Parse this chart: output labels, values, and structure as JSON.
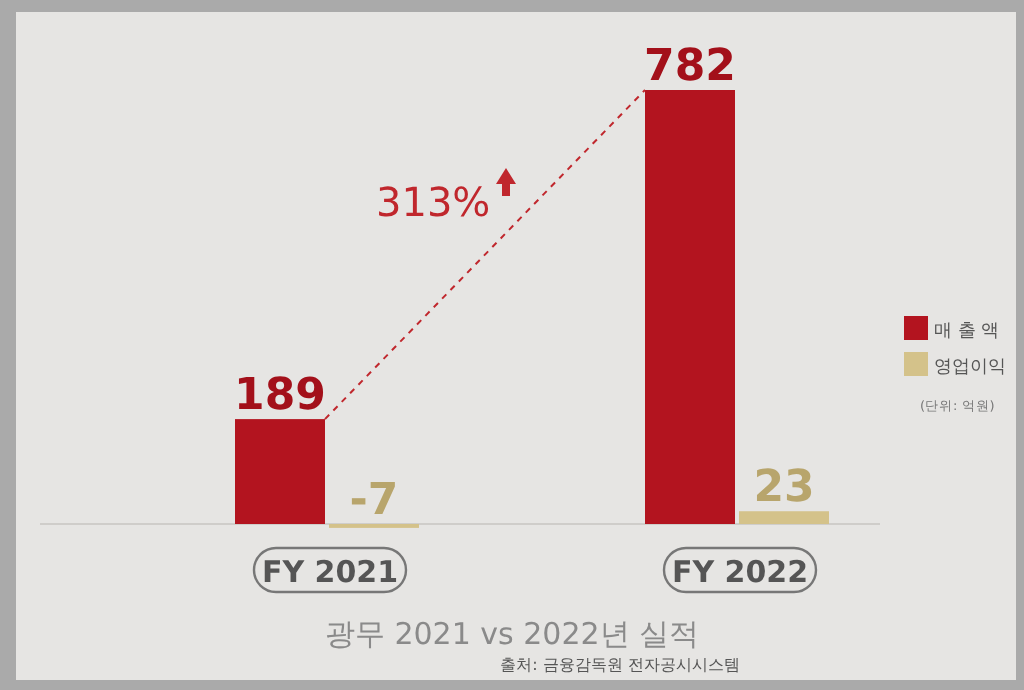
{
  "chart_data": {
    "type": "bar",
    "title": "광무 2021 vs 2022년 실적",
    "categories": [
      "FY 2021",
      "FY 2022"
    ],
    "series": [
      {
        "name": "매 출 액",
        "color": "#b3141f",
        "values": [
          189,
          782
        ]
      },
      {
        "name": "영업이익",
        "color": "#d4c28a",
        "values": [
          -7,
          23
        ]
      }
    ],
    "data_labels": true,
    "legend": "right",
    "legend_title": "(단위: 억원)",
    "annotations": [
      "313%",
      "출처: 금융감독원 전자공시시스템"
    ]
  }
}
